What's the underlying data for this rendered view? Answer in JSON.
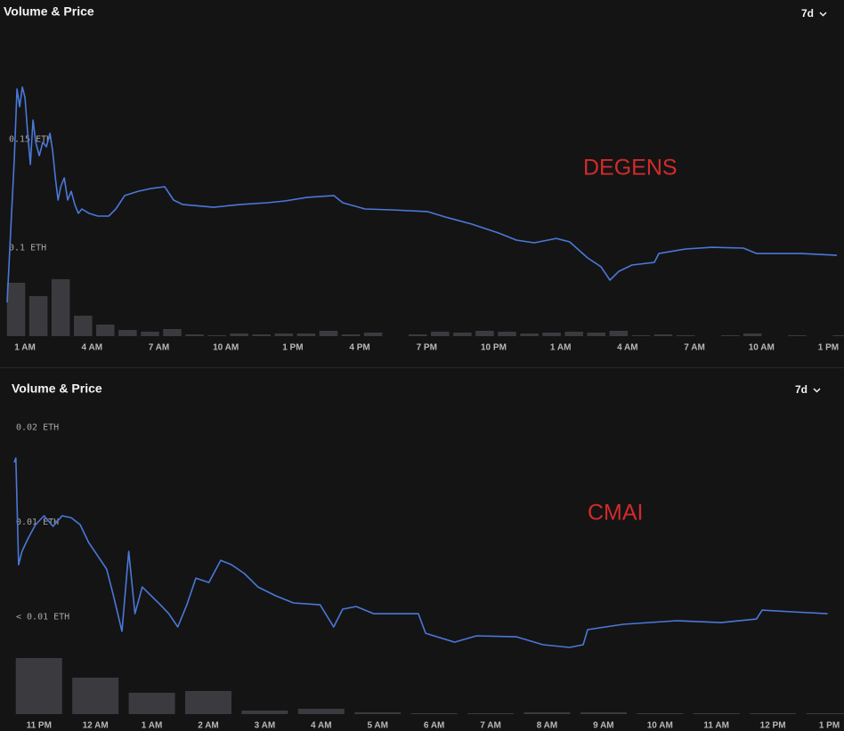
{
  "chart_data": [
    {
      "type": "combo",
      "title": "Volume & Price",
      "range": "7d",
      "annotation": "DEGENS",
      "annotation_color": "#d42a2a",
      "xlim": [
        -1.12,
        36.7
      ],
      "xticks": [
        {
          "value": 0,
          "label": "1 AM"
        },
        {
          "value": 3,
          "label": "4 AM"
        },
        {
          "value": 6,
          "label": "7 AM"
        },
        {
          "value": 9,
          "label": "10 AM"
        },
        {
          "value": 12,
          "label": "1 PM"
        },
        {
          "value": 15,
          "label": "4 PM"
        },
        {
          "value": 18,
          "label": "7 PM"
        },
        {
          "value": 21,
          "label": "10 PM"
        },
        {
          "value": 24,
          "label": "1 AM"
        },
        {
          "value": 27,
          "label": "4 AM"
        },
        {
          "value": 30,
          "label": "7 AM"
        },
        {
          "value": 33,
          "label": "10 AM"
        },
        {
          "value": 36,
          "label": "1 PM"
        }
      ],
      "ylim": [
        0.059,
        0.198
      ],
      "yticks": [
        {
          "value": 0.1,
          "label": "0.1 ETH"
        },
        {
          "value": 0.15,
          "label": "0.15 ETH"
        }
      ],
      "price": {
        "color": "#4a78d8",
        "x": [
          -0.8,
          -0.64,
          -0.48,
          -0.36,
          -0.24,
          -0.12,
          0,
          0.12,
          0.24,
          0.36,
          0.48,
          0.64,
          0.8,
          0.96,
          1.12,
          1.24,
          1.36,
          1.48,
          1.6,
          1.76,
          1.91,
          2.07,
          2.23,
          2.39,
          2.55,
          2.87,
          3.27,
          3.75,
          4.07,
          4.47,
          5.07,
          5.66,
          6.26,
          6.66,
          7.06,
          8.46,
          9.65,
          10.85,
          11.65,
          12.64,
          13.84,
          14.24,
          15.24,
          16.43,
          18.03,
          18.83,
          20.02,
          21.22,
          22.02,
          22.82,
          23.81,
          24.41,
          25.21,
          25.81,
          26.21,
          26.61,
          27.2,
          28.2,
          28.4,
          29.6,
          30.79,
          32.19,
          32.79,
          34.78,
          36.38
        ],
        "values": [
          0.0746,
          0.1075,
          0.1404,
          0.1733,
          0.1651,
          0.1742,
          0.1692,
          0.1528,
          0.1384,
          0.1589,
          0.1487,
          0.1425,
          0.1487,
          0.1466,
          0.1528,
          0.1445,
          0.1322,
          0.1219,
          0.1281,
          0.1322,
          0.1219,
          0.126,
          0.1199,
          0.1158,
          0.1178,
          0.1158,
          0.1145,
          0.1145,
          0.1178,
          0.124,
          0.126,
          0.1273,
          0.1281,
          0.1219,
          0.1199,
          0.1186,
          0.1199,
          0.1207,
          0.1215,
          0.1232,
          0.124,
          0.1207,
          0.1178,
          0.1174,
          0.1166,
          0.1141,
          0.1108,
          0.1067,
          0.1034,
          0.1022,
          0.1042,
          0.1026,
          0.0952,
          0.0911,
          0.0849,
          0.089,
          0.0919,
          0.0931,
          0.0972,
          0.0993,
          0.1001,
          0.0997,
          0.0972,
          0.0972,
          0.0964
        ]
      },
      "volume": {
        "color": "#3b3b3f",
        "x": [
          -0.4,
          0.6,
          1.6,
          2.6,
          3.6,
          4.6,
          5.6,
          6.6,
          7.6,
          8.6,
          9.6,
          10.6,
          11.6,
          12.6,
          13.6,
          14.6,
          15.6,
          16.6,
          17.6,
          18.6,
          19.6,
          20.6,
          21.6,
          22.6,
          23.6,
          24.6,
          25.6,
          26.6,
          27.6,
          28.6,
          29.6,
          30.6,
          31.6,
          32.6,
          33.6,
          34.6,
          35.6,
          36.6
        ],
        "values": [
          60,
          45,
          64,
          23,
          13,
          7,
          5,
          8,
          2,
          1,
          3,
          2,
          3,
          3,
          6,
          2,
          4,
          0,
          2,
          5,
          4,
          6,
          5,
          3,
          4,
          5,
          4,
          6,
          1,
          2,
          1,
          0,
          1,
          3,
          0,
          1,
          0,
          1
        ]
      }
    },
    {
      "type": "combo",
      "title": "Volume & Price",
      "range": "7d",
      "annotation": "CMAI",
      "annotation_color": "#d42a2a",
      "xlim": [
        -0.69,
        14.26
      ],
      "xticks": [
        {
          "value": 0,
          "label": "11 PM"
        },
        {
          "value": 1,
          "label": "12 AM"
        },
        {
          "value": 2,
          "label": "1 AM"
        },
        {
          "value": 3,
          "label": "2 AM"
        },
        {
          "value": 4,
          "label": "3 AM"
        },
        {
          "value": 5,
          "label": "4 AM"
        },
        {
          "value": 6,
          "label": "5 AM"
        },
        {
          "value": 7,
          "label": "6 AM"
        },
        {
          "value": 8,
          "label": "7 AM"
        },
        {
          "value": 9,
          "label": "8 AM"
        },
        {
          "value": 10,
          "label": "9 AM"
        },
        {
          "value": 11,
          "label": "10 AM"
        },
        {
          "value": 12,
          "label": "11 AM"
        },
        {
          "value": 13,
          "label": "12 PM"
        },
        {
          "value": 14,
          "label": "1 PM"
        }
      ],
      "ylim": [
        -0.00014,
        0.01573
      ],
      "yticks": [
        {
          "value": 0.005,
          "label": "< 0.01 ETH"
        },
        {
          "value": 0.01,
          "label": "0.01 ETH"
        },
        {
          "value": 0.015,
          "label": "0.02 ETH"
        }
      ],
      "price": {
        "color": "#4a78d8",
        "x": [
          -0.44,
          -0.41,
          -0.36,
          -0.3,
          -0.19,
          -0.06,
          0.09,
          0.25,
          0.41,
          0.57,
          0.73,
          0.88,
          1.04,
          1.2,
          1.32,
          1.47,
          1.59,
          1.7,
          1.83,
          1.99,
          2.15,
          2.3,
          2.46,
          2.62,
          2.78,
          3.01,
          3.22,
          3.41,
          3.64,
          3.88,
          4.2,
          4.51,
          4.98,
          5.22,
          5.38,
          5.62,
          5.93,
          6.72,
          6.85,
          7.36,
          7.75,
          8.46,
          8.93,
          9.4,
          9.64,
          9.72,
          10.35,
          11.29,
          12.08,
          12.71,
          12.81,
          13.34,
          13.97
        ],
        "values": [
          0.01315,
          0.01338,
          0.00775,
          0.00845,
          0.00915,
          0.00986,
          0.01033,
          0.00977,
          0.01033,
          0.01023,
          0.00986,
          0.00892,
          0.00822,
          0.00751,
          0.0061,
          0.00423,
          0.00845,
          0.00516,
          0.00657,
          0.0061,
          0.00563,
          0.00516,
          0.00446,
          0.00563,
          0.00704,
          0.00681,
          0.00798,
          0.00775,
          0.00728,
          0.00657,
          0.0061,
          0.00573,
          0.00563,
          0.00446,
          0.0054,
          0.00554,
          0.00516,
          0.00516,
          0.00413,
          0.00366,
          0.00399,
          0.00394,
          0.00352,
          0.00338,
          0.00352,
          0.00432,
          0.0046,
          0.00479,
          0.00469,
          0.00488,
          0.00535,
          0.00526,
          0.00516
        ]
      },
      "volume": {
        "color": "#3b3b3f",
        "x": [
          0,
          1,
          2,
          3,
          4,
          5,
          6,
          7,
          8,
          9,
          10,
          11,
          12,
          13,
          14
        ],
        "values": [
          63,
          41,
          24,
          26,
          4,
          6,
          2,
          1,
          1,
          2,
          2,
          1,
          1,
          1,
          1
        ]
      }
    }
  ]
}
